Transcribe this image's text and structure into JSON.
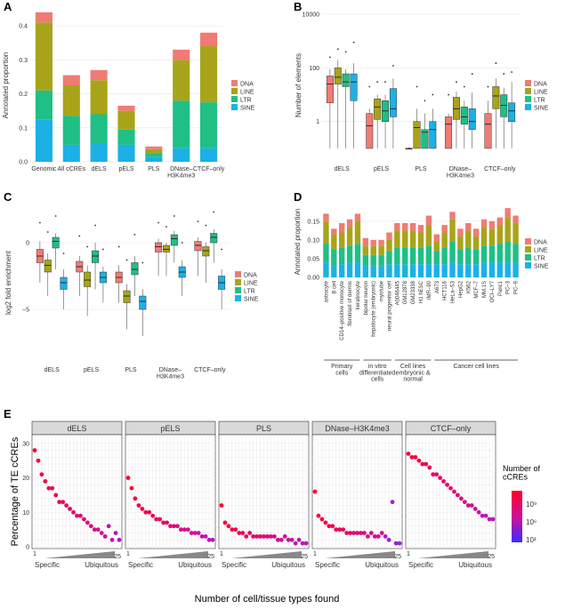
{
  "colors": {
    "DNA": "#f07b74",
    "LINE": "#a8a41a",
    "LTR": "#1fbf86",
    "SINE": "#1bb1e6",
    "strip": "#d9d9d9",
    "grid": "#ebebeb"
  },
  "legend": [
    "DNA",
    "LINE",
    "LTR",
    "SINE"
  ],
  "chart_data": [
    {
      "panel": "A",
      "type": "bar",
      "stacked": true,
      "ylabel": "Annotated proportion",
      "ylim": [
        0,
        0.45
      ],
      "yticks": [
        "0.0",
        "0.1",
        "0.2",
        "0.3",
        "0.4"
      ],
      "categories": [
        "Genomic",
        "All cCREs",
        "dELS",
        "pELS",
        "PLS",
        "DNase–\nH3K4me3",
        "CTCF–only"
      ],
      "series": [
        {
          "name": "SINE",
          "values": [
            0.125,
            0.05,
            0.055,
            0.05,
            0.015,
            0.04,
            0.04
          ]
        },
        {
          "name": "LTR",
          "values": [
            0.085,
            0.085,
            0.085,
            0.045,
            0.01,
            0.14,
            0.135
          ]
        },
        {
          "name": "LINE",
          "values": [
            0.2,
            0.09,
            0.1,
            0.055,
            0.012,
            0.12,
            0.165
          ]
        },
        {
          "name": "DNA",
          "values": [
            0.03,
            0.03,
            0.03,
            0.015,
            0.008,
            0.03,
            0.04
          ]
        }
      ]
    },
    {
      "panel": "B",
      "type": "box",
      "ylabel": "Number of elements",
      "scale": "log",
      "yticks": [
        "1",
        "100",
        "10000"
      ],
      "categories": [
        "dELS",
        "pELS",
        "PLS",
        "DNase–\nH3K4me3",
        "CTCF–only"
      ],
      "boxes": [
        [
          [
            0.1,
            5,
            25,
            50,
            90,
            250
          ],
          [
            0.1,
            25,
            45,
            100,
            200,
            500
          ],
          [
            0.1,
            20,
            30,
            60,
            90,
            400
          ],
          [
            0.1,
            6,
            30,
            60,
            150,
            900
          ]
        ],
        [
          [
            0.1,
            0.1,
            0.7,
            2,
            3,
            20
          ],
          [
            0.1,
            1.2,
            3.5,
            7,
            10,
            30
          ],
          [
            0.1,
            1,
            2.5,
            6,
            10,
            30
          ],
          [
            0.1,
            1.5,
            3,
            17,
            40,
            120
          ]
        ],
        [
          [
            0.1,
            0.1,
            0.1,
            0.1,
            0.1,
            0.1
          ],
          [
            0.1,
            0.1,
            0.6,
            1,
            3,
            20
          ],
          [
            0.1,
            0.1,
            0.4,
            0.5,
            2,
            6
          ],
          [
            0.1,
            0.1,
            0.5,
            1,
            3,
            10
          ]
        ],
        [
          [
            0.1,
            0.1,
            0.8,
            1.5,
            2,
            10
          ],
          [
            0.1,
            1.2,
            3,
            8,
            13,
            30
          ],
          [
            0.1,
            0.8,
            1.5,
            3.5,
            6,
            20
          ],
          [
            0.1,
            0.5,
            1,
            3,
            12,
            60
          ]
        ],
        [
          [
            0.1,
            0.1,
            0.8,
            2,
            6,
            20
          ],
          [
            0.1,
            3,
            9,
            20,
            40,
            150
          ],
          [
            0.1,
            1.5,
            4,
            10,
            18,
            60
          ],
          [
            0.1,
            1,
            2.5,
            5,
            30,
            70
          ]
        ]
      ]
    },
    {
      "panel": "C",
      "type": "box",
      "ylabel": "log2 fold enrichment",
      "ylim": [
        -9,
        3
      ],
      "yticks": [
        "0",
        "−5"
      ],
      "categories": [
        "dELS",
        "pELS",
        "PLS",
        "DNase–\nH3K4me3",
        "CTCF–only"
      ],
      "boxes": [
        [
          [
            -3,
            -1.5,
            -1,
            -0.5,
            0.1,
            1.5
          ],
          [
            -4,
            -2.2,
            -1.7,
            -1.3,
            -0.8,
            0.8
          ],
          [
            -2,
            -0.4,
            0.1,
            0.4,
            0.7,
            2
          ],
          [
            -5,
            -3.5,
            -3,
            -2.6,
            -2,
            -0.8
          ]
        ],
        [
          [
            -4,
            -2.2,
            -1.8,
            -1.4,
            -1,
            0.5
          ],
          [
            -5.5,
            -3.3,
            -2.8,
            -2.2,
            -1.7,
            -0.3
          ],
          [
            -3.5,
            -1.5,
            -1,
            -0.6,
            0,
            1.3
          ],
          [
            -4.5,
            -3,
            -2.6,
            -2.2,
            -1.8,
            -0.5
          ]
        ],
        [
          [
            -4.5,
            -3,
            -2.6,
            -2.2,
            -1.7,
            -0.3
          ],
          [
            -6.5,
            -4.5,
            -4,
            -3.6,
            -3.1,
            -1.3
          ],
          [
            -4,
            -2.4,
            -2,
            -1.5,
            -1,
            0.6
          ],
          [
            -7,
            -5,
            -4.4,
            -4,
            -3.5,
            -1.5
          ]
        ],
        [
          [
            -2.5,
            -0.7,
            -0.3,
            0,
            0.3,
            1.5
          ],
          [
            -2.5,
            -0.7,
            -0.5,
            -0.2,
            0,
            1.2
          ],
          [
            -1.5,
            -0.2,
            0.3,
            0.6,
            0.9,
            2
          ],
          [
            -4,
            -2.6,
            -2.2,
            -1.8,
            -1.3,
            0
          ]
        ],
        [
          [
            -2.5,
            -0.6,
            -0.2,
            0.1,
            0.4,
            1.6
          ],
          [
            -3,
            -1,
            -0.6,
            -0.3,
            0,
            1.3
          ],
          [
            -1.5,
            0,
            0.4,
            0.7,
            1,
            2.3
          ],
          [
            -5,
            -3.5,
            -3,
            -2.5,
            -2,
            -0.5
          ]
        ]
      ]
    },
    {
      "panel": "D",
      "type": "bar",
      "stacked": true,
      "ylabel": "Annotated proportion",
      "ylim": [
        0,
        0.19
      ],
      "yticks": [
        "0.00",
        "0.05",
        "0.10",
        "0.15"
      ],
      "categories": [
        "astrocyte",
        "B cell",
        "CD14–positive monocyte",
        "fibroblast of dermis",
        "keratinocyte",
        "bipolar neuron",
        "hepatocyte (embryonic)",
        "myotube",
        "neural progenitor cell",
        "A0046445",
        "GM12878",
        "GM23338",
        "H1 hESC",
        "IMR–90",
        "A673",
        "HCT116",
        "HeLa–S3",
        "HepG2",
        "K562",
        "MCF–7",
        "MM.1S",
        "OCI–LY7",
        "Panc1",
        "PC–3",
        "PC–9"
      ],
      "groups": [
        {
          "label": "Primary cells",
          "count": 5
        },
        {
          "label": "in vitro differentiated cells",
          "count": 4
        },
        {
          "label": "Cell lines embryonic & normal",
          "count": 5
        },
        {
          "label": "Cancer cell lines",
          "count": 11
        }
      ],
      "series": [
        {
          "name": "SINE",
          "values": [
            0.04,
            0.03,
            0.035,
            0.04,
            0.04,
            0.03,
            0.03,
            0.03,
            0.035,
            0.035,
            0.035,
            0.035,
            0.035,
            0.035,
            0.035,
            0.035,
            0.04,
            0.035,
            0.035,
            0.035,
            0.04,
            0.04,
            0.04,
            0.04,
            0.04
          ]
        },
        {
          "name": "LTR",
          "values": [
            0.05,
            0.045,
            0.045,
            0.045,
            0.05,
            0.03,
            0.03,
            0.03,
            0.035,
            0.045,
            0.045,
            0.045,
            0.045,
            0.05,
            0.035,
            0.045,
            0.055,
            0.04,
            0.045,
            0.04,
            0.045,
            0.045,
            0.05,
            0.055,
            0.05
          ]
        },
        {
          "name": "LINE",
          "values": [
            0.06,
            0.04,
            0.04,
            0.05,
            0.06,
            0.025,
            0.025,
            0.025,
            0.03,
            0.045,
            0.045,
            0.045,
            0.04,
            0.055,
            0.025,
            0.04,
            0.06,
            0.035,
            0.045,
            0.035,
            0.05,
            0.045,
            0.05,
            0.065,
            0.055
          ]
        },
        {
          "name": "DNA",
          "values": [
            0.02,
            0.015,
            0.025,
            0.02,
            0.02,
            0.02,
            0.015,
            0.015,
            0.02,
            0.02,
            0.02,
            0.02,
            0.02,
            0.025,
            0.02,
            0.02,
            0.02,
            0.02,
            0.02,
            0.02,
            0.02,
            0.02,
            0.02,
            0.025,
            0.02
          ]
        }
      ]
    },
    {
      "panel": "E",
      "type": "scatter",
      "ylabel": "Percentage of TE cCREs",
      "xlabel": "Number of cell/tissue types found",
      "xlim": [
        1,
        25
      ],
      "ylim": [
        0,
        32
      ],
      "xticks": [
        "1",
        "25"
      ],
      "yticks": [
        "0",
        "10",
        "20",
        "30"
      ],
      "gradient_left": "Specific",
      "gradient_right": "Ubiquitous",
      "colorbar": {
        "title": "Number of cCREs",
        "ticks": [
          "10⁹",
          "10⁶",
          "10³"
        ]
      },
      "facets": [
        {
          "title": "dELS",
          "y": [
            28,
            25,
            21,
            19,
            17,
            17,
            15,
            13,
            13,
            12,
            11,
            10,
            9,
            9,
            8,
            7,
            6,
            5,
            5,
            4,
            3,
            6,
            2,
            4,
            2
          ]
        },
        {
          "title": "pELS",
          "y": [
            20,
            17,
            14,
            12,
            11,
            10,
            10,
            9,
            8,
            8,
            7,
            7,
            6,
            6,
            6,
            5,
            5,
            5,
            4,
            4,
            4,
            3,
            3,
            2,
            2
          ]
        },
        {
          "title": "PLS",
          "y": [
            12,
            7,
            6,
            5,
            5,
            4,
            4,
            3,
            4,
            3,
            3,
            3,
            3,
            3,
            3,
            3,
            2,
            2,
            3,
            2,
            2,
            1,
            2,
            1,
            1
          ]
        },
        {
          "title": "DNase–H3K4me3",
          "y": [
            16,
            9,
            8,
            7,
            6,
            6,
            5,
            5,
            5,
            4,
            4,
            4,
            4,
            4,
            4,
            3,
            4,
            3,
            3,
            4,
            3,
            2,
            13,
            1,
            1
          ]
        },
        {
          "title": "CTCF–only",
          "y": [
            27,
            26,
            26,
            25,
            24,
            24,
            23,
            21,
            21,
            20,
            19,
            18,
            17,
            16,
            15,
            14,
            13,
            12,
            12,
            11,
            10,
            9,
            9,
            8,
            8
          ]
        }
      ]
    }
  ]
}
